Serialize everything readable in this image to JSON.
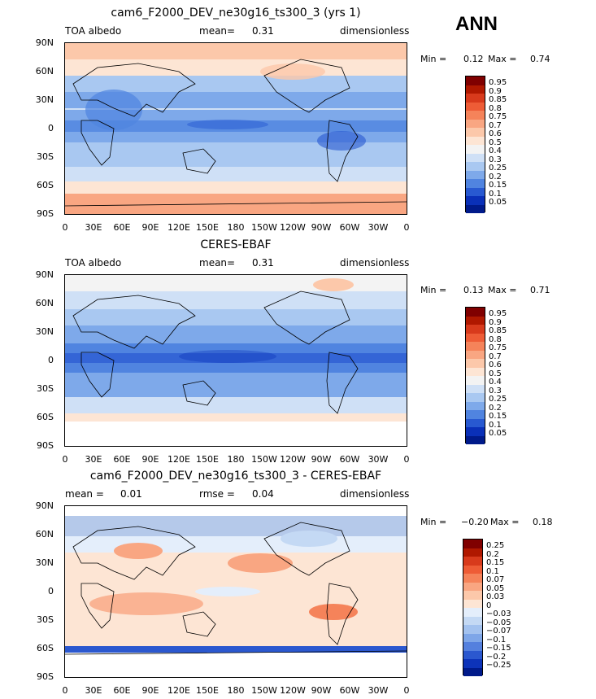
{
  "season": "ANN",
  "ytick_labels": [
    "90N",
    "60N",
    "30N",
    "0",
    "30S",
    "60S",
    "90S"
  ],
  "xtick_labels": [
    "0",
    "30E",
    "60E",
    "90E",
    "120E",
    "150E",
    "180",
    "150W",
    "120W",
    "90W",
    "60W",
    "30W",
    "0"
  ],
  "panels": [
    {
      "title": "cam6_F2000_DEV_ne30g16_ts300_3 (yrs 1)",
      "left_label": "TOA albedo",
      "center_label": "mean=",
      "center_value": "0.31",
      "units": "dimensionless",
      "min_label": "Min =",
      "min_value": "0.12",
      "max_label": "Max =",
      "max_value": "0.74",
      "colorbar_labels": [
        "0.95",
        "0.9",
        "0.85",
        "0.8",
        "0.75",
        "0.7",
        "0.6",
        "0.5",
        "0.4",
        "0.3",
        "0.25",
        "0.2",
        "0.15",
        "0.1",
        "0.05"
      ],
      "colorbar_colors": [
        "#800000",
        "#b01800",
        "#d83a1c",
        "#ee5c36",
        "#f5835a",
        "#f9a682",
        "#fcc8aa",
        "#fde5d4",
        "#f3f3f3",
        "#cfe0f6",
        "#a9c8f1",
        "#7ea9ea",
        "#5084e0",
        "#2859d1",
        "#0a30b8",
        "#001a8a"
      ]
    },
    {
      "title": "CERES-EBAF",
      "left_label": "TOA albedo",
      "center_label": "mean=",
      "center_value": "0.31",
      "units": "dimensionless",
      "min_label": "Min =",
      "min_value": "0.13",
      "max_label": "Max =",
      "max_value": "0.71",
      "colorbar_labels": [
        "0.95",
        "0.9",
        "0.85",
        "0.8",
        "0.75",
        "0.7",
        "0.6",
        "0.5",
        "0.4",
        "0.3",
        "0.25",
        "0.2",
        "0.15",
        "0.1",
        "0.05"
      ],
      "colorbar_colors": [
        "#800000",
        "#b01800",
        "#d83a1c",
        "#ee5c36",
        "#f5835a",
        "#f9a682",
        "#fcc8aa",
        "#fde5d4",
        "#f3f3f3",
        "#cfe0f6",
        "#a9c8f1",
        "#7ea9ea",
        "#5084e0",
        "#2859d1",
        "#0a30b8",
        "#001a8a"
      ]
    },
    {
      "title": "cam6_F2000_DEV_ne30g16_ts300_3 - CERES-EBAF",
      "left_label": "mean =",
      "left_value": "0.01",
      "center_label": "rmse =",
      "center_value": "0.04",
      "units": "dimensionless",
      "min_label": "Min =",
      "min_value": "−0.20",
      "max_label": "Max =",
      "max_value": "0.18",
      "colorbar_labels": [
        "0.25",
        "0.2",
        "0.15",
        "0.1",
        "0.07",
        "0.05",
        "0.03",
        "0",
        "−0.03",
        "−0.05",
        "−0.07",
        "−0.1",
        "−0.15",
        "−0.2",
        "−0.25"
      ],
      "colorbar_colors": [
        "#800000",
        "#b01800",
        "#d83a1c",
        "#ee5c36",
        "#f5835a",
        "#f9a682",
        "#fcc8aa",
        "#fde5d4",
        "#e4eefb",
        "#c4d9f4",
        "#a3c2ef",
        "#7ea6e8",
        "#5480de",
        "#2b58cf",
        "#0d33b9",
        "#001a8a"
      ]
    }
  ]
}
